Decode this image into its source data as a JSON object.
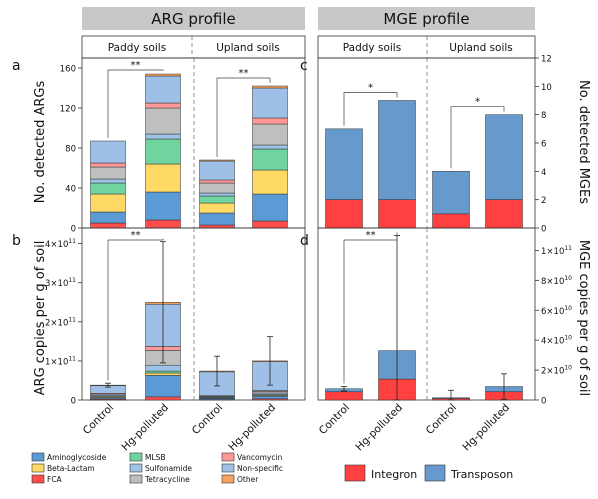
{
  "panels": {
    "arg_header": "ARG profile",
    "mge_header": "MGE profile",
    "group_paddy": "Paddy soils",
    "group_upland": "Upland soils",
    "letters": [
      "a",
      "b",
      "c",
      "d"
    ]
  },
  "colors": {
    "Aminoglycoside": "#5b9bd5",
    "Beta-Lactam": "#ffd966",
    "FCA": "#ff4d4d",
    "MLSB": "#6fd4a0",
    "Sulfonamide": "#9dc3e6",
    "Tetracycline": "#bfbfbf",
    "Vancomycin": "#ff9999",
    "Non-specific": "#9fc0e6",
    "Other": "#f4a460",
    "Integron": "#ff4040",
    "Transposon": "#6699cc",
    "header_bg": "#c8c8c8"
  },
  "legend_arg": [
    "Aminoglycoside",
    "Beta-Lactam",
    "FCA",
    "MLSB",
    "Sulfonamide",
    "Tetracycline",
    "Vancomycin",
    "Non-specific",
    "Other"
  ],
  "legend_mge": [
    "Integron",
    "Transposon"
  ],
  "chart_data": [
    {
      "id": "a",
      "type": "bar",
      "stacked": true,
      "ylabel": "No. detected ARGs",
      "ylim": [
        0,
        170
      ],
      "yticks": [
        0,
        40,
        80,
        120,
        160
      ],
      "categories": [
        "Control",
        "Hg-polluted",
        "Control",
        "Hg-polluted"
      ],
      "series": [
        {
          "name": "FCA",
          "values": [
            5,
            8,
            3,
            7
          ]
        },
        {
          "name": "Aminoglycoside",
          "values": [
            11,
            28,
            12,
            27
          ]
        },
        {
          "name": "Beta-Lactam",
          "values": [
            18,
            28,
            10,
            24
          ]
        },
        {
          "name": "MLSB",
          "values": [
            11,
            25,
            7,
            21
          ]
        },
        {
          "name": "Sulfonamide",
          "values": [
            4,
            5,
            3,
            4
          ]
        },
        {
          "name": "Tetracycline",
          "values": [
            12,
            26,
            10,
            21
          ]
        },
        {
          "name": "Vancomycin",
          "values": [
            4,
            5,
            3,
            6
          ]
        },
        {
          "name": "Non-specific",
          "values": [
            22,
            27,
            19,
            30
          ]
        },
        {
          "name": "Other",
          "values": [
            0,
            2,
            1,
            2
          ]
        }
      ],
      "annotations": [
        {
          "text": "**",
          "between": [
            0,
            1
          ]
        },
        {
          "text": "**",
          "between": [
            2,
            3
          ]
        }
      ]
    },
    {
      "id": "b",
      "type": "bar",
      "stacked": true,
      "ylabel": "ARG copies per g of soil",
      "ylim": [
        0,
        440000000000.0
      ],
      "yticks": [
        0,
        100000000000.0,
        200000000000.0,
        300000000000.0,
        400000000000.0
      ],
      "yticklabels": [
        "0",
        "1×10",
        "2×10",
        "3×10",
        "4×10"
      ],
      "ytick_exponent": "11",
      "categories": [
        "Control",
        "Hg-polluted",
        "Control",
        "Hg-polluted"
      ],
      "series": [
        {
          "name": "FCA",
          "values": [
            2000000000.0,
            8000000000.0,
            1000000000.0,
            3000000000.0
          ]
        },
        {
          "name": "Aminoglycoside",
          "values": [
            3000000000.0,
            55000000000.0,
            3000000000.0,
            7000000000.0
          ]
        },
        {
          "name": "Beta-Lactam",
          "values": [
            2000000000.0,
            6000000000.0,
            1000000000.0,
            2000000000.0
          ]
        },
        {
          "name": "MLSB",
          "values": [
            2000000000.0,
            5000000000.0,
            1000000000.0,
            2000000000.0
          ]
        },
        {
          "name": "Sulfonamide",
          "values": [
            3000000000.0,
            15000000000.0,
            2000000000.0,
            4000000000.0
          ]
        },
        {
          "name": "Tetracycline",
          "values": [
            3000000000.0,
            38000000000.0,
            2000000000.0,
            4000000000.0
          ]
        },
        {
          "name": "Vancomycin",
          "values": [
            2000000000.0,
            10000000000.0,
            1000000000.0,
            2000000000.0
          ]
        },
        {
          "name": "Non-specific",
          "values": [
            20000000000.0,
            108000000000.0,
            61000000000.0,
            74000000000.0
          ]
        },
        {
          "name": "Other",
          "values": [
            1000000000.0,
            5000000000.0,
            2000000000.0,
            2000000000.0
          ]
        }
      ],
      "error_bars": [
        5000000000.0,
        155000000000.0,
        38000000000.0,
        62000000000.0
      ],
      "annotations": [
        {
          "text": "**",
          "between": [
            0,
            1
          ]
        }
      ]
    },
    {
      "id": "c",
      "type": "bar",
      "stacked": true,
      "ylabel": "No. detected MGEs",
      "ylim": [
        0,
        12
      ],
      "yticks": [
        0,
        2,
        4,
        6,
        8,
        10,
        12
      ],
      "categories": [
        "Control",
        "Hg-polluted",
        "Control",
        "Hg-polluted"
      ],
      "series": [
        {
          "name": "Integron",
          "values": [
            2,
            2,
            1,
            2
          ]
        },
        {
          "name": "Transposon",
          "values": [
            5,
            7,
            3,
            6
          ]
        }
      ],
      "annotations": [
        {
          "text": "*",
          "between": [
            0,
            1
          ]
        },
        {
          "text": "*",
          "between": [
            2,
            3
          ]
        }
      ]
    },
    {
      "id": "d",
      "type": "bar",
      "stacked": true,
      "ylabel": "MGE copies per g of soil",
      "ylim": [
        0,
        115000000000.0
      ],
      "yticks": [
        0,
        20000000000.0,
        40000000000.0,
        60000000000.0,
        80000000000.0,
        100000000000.0
      ],
      "yticklabels": [
        "0",
        "2×10",
        "4×10",
        "6×10",
        "8×10",
        "1×10"
      ],
      "ytick_exponents": [
        "",
        "10",
        "10",
        "10",
        "10",
        "11"
      ],
      "categories": [
        "Control",
        "Hg-polluted",
        "Control",
        "Hg-polluted"
      ],
      "series": [
        {
          "name": "Integron",
          "values": [
            5500000000.0,
            14000000000.0,
            1000000000.0,
            5500000000.0
          ]
        },
        {
          "name": "Transposon",
          "values": [
            2000000000.0,
            19000000000.0,
            500000000.0,
            3500000000.0
          ]
        }
      ],
      "error_bars": [
        1500000000.0,
        77000000000.0,
        5000000000.0,
        8500000000.0
      ],
      "annotations": [
        {
          "text": "**",
          "between": [
            0,
            1
          ]
        }
      ]
    }
  ]
}
